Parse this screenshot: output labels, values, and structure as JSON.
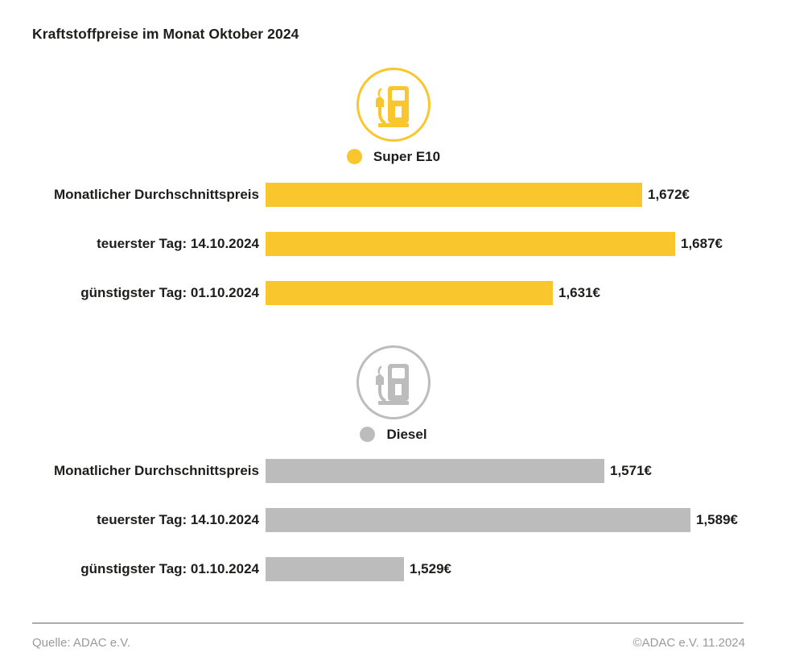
{
  "title": "Kraftstoffpreise im Monat Oktober 2024",
  "chart_data": [
    {
      "type": "bar",
      "orientation": "horizontal",
      "group": "Super E10",
      "legend": {
        "label": "Super E10",
        "color": "#FAC62D",
        "icon": "fuel-pump-icon"
      },
      "categories": [
        "Monatlicher Durchschnittspreis",
        "teuerster Tag: 14.10.2024",
        "günstigster Tag: 01.10.2024"
      ],
      "values": [
        1.672,
        1.687,
        1.631
      ],
      "value_labels": [
        "1,672€",
        "1,687€",
        "1,631€"
      ],
      "unit": "€",
      "xlim": [
        1.5,
        1.687
      ],
      "bar_color": "#FAC62D",
      "grid": false,
      "legend_position": "top-center"
    },
    {
      "type": "bar",
      "orientation": "horizontal",
      "group": "Diesel",
      "legend": {
        "label": "Diesel",
        "color": "#BCBCBC",
        "icon": "fuel-pump-icon"
      },
      "categories": [
        "Monatlicher Durchschnittspreis",
        "teuerster Tag: 14.10.2024",
        "günstigster Tag: 01.10.2024"
      ],
      "values": [
        1.571,
        1.589,
        1.529
      ],
      "value_labels": [
        "1,571€",
        "1,589€",
        "1,529€"
      ],
      "unit": "€",
      "xlim": [
        1.5,
        1.589
      ],
      "bar_color": "#BCBCBC",
      "grid": false,
      "legend_position": "top-center"
    }
  ],
  "footer": {
    "source": "Quelle: ADAC e.V.",
    "copyright": "©ADAC e.V. 11.2024"
  }
}
